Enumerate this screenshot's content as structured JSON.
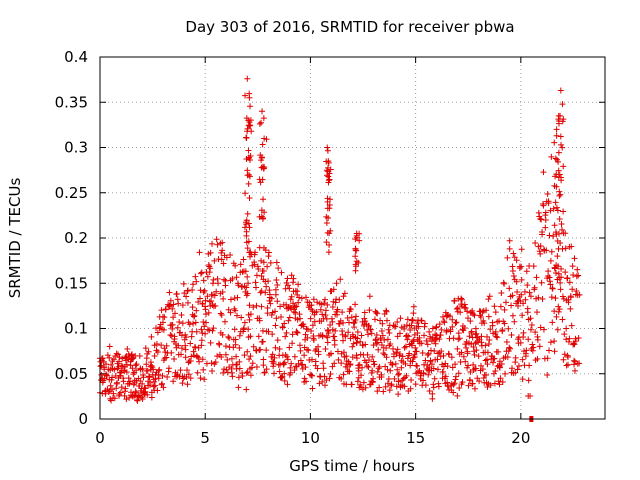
{
  "chart_data": {
    "type": "scatter",
    "title": "Day 303 of 2016, SRMTID for receiver pbwa",
    "xlabel": "GPS time / hours",
    "ylabel": "SRMTID / TECUs",
    "xlim": [
      0,
      24
    ],
    "ylim": [
      0,
      0.4
    ],
    "x_ticks": [
      0,
      5,
      10,
      15,
      20
    ],
    "x_tick_labels": [
      "0",
      "5",
      "10",
      "15",
      "20"
    ],
    "y_ticks": [
      0,
      0.05,
      0.1,
      0.15,
      0.2,
      0.25,
      0.3,
      0.35,
      0.4
    ],
    "y_tick_labels": [
      "0",
      "0.05",
      "0.1",
      "0.15",
      "0.2",
      "0.25",
      "0.3",
      "0.35",
      "0.4"
    ],
    "grid": true,
    "marker": "plus",
    "color": "#e00000",
    "series": [
      {
        "name": "SRMTID",
        "trend_hours": [
          0,
          1,
          2,
          2.5,
          3,
          4,
          5,
          5.5,
          6,
          6.5,
          7,
          7.5,
          8,
          8.5,
          9,
          10,
          10.5,
          11,
          11.5,
          12,
          13,
          14,
          15,
          15.5,
          16,
          17,
          18,
          18.5,
          19,
          19.5,
          20,
          20.5,
          21,
          21.5,
          22,
          22.5
        ],
        "trend_values": [
          0.05,
          0.045,
          0.045,
          0.06,
          0.08,
          0.09,
          0.11,
          0.13,
          0.12,
          0.11,
          0.12,
          0.12,
          0.12,
          0.11,
          0.1,
          0.085,
          0.08,
          0.09,
          0.09,
          0.08,
          0.075,
          0.075,
          0.08,
          0.065,
          0.065,
          0.085,
          0.075,
          0.08,
          0.09,
          0.12,
          0.11,
          0.1,
          0.16,
          0.17,
          0.15,
          0.12
        ],
        "peaks": [
          {
            "x": 7.0,
            "y": 0.376
          },
          {
            "x": 7.1,
            "y": 0.355
          },
          {
            "x": 7.05,
            "y": 0.33
          },
          {
            "x": 7.7,
            "y": 0.34
          },
          {
            "x": 7.8,
            "y": 0.31
          },
          {
            "x": 10.8,
            "y": 0.3
          },
          {
            "x": 10.85,
            "y": 0.285
          },
          {
            "x": 12.2,
            "y": 0.205
          },
          {
            "x": 21.9,
            "y": 0.363
          },
          {
            "x": 21.8,
            "y": 0.335
          },
          {
            "x": 21.7,
            "y": 0.32
          }
        ],
        "outliers": [
          {
            "x": 20.5,
            "y": 0.0
          }
        ]
      }
    ]
  }
}
